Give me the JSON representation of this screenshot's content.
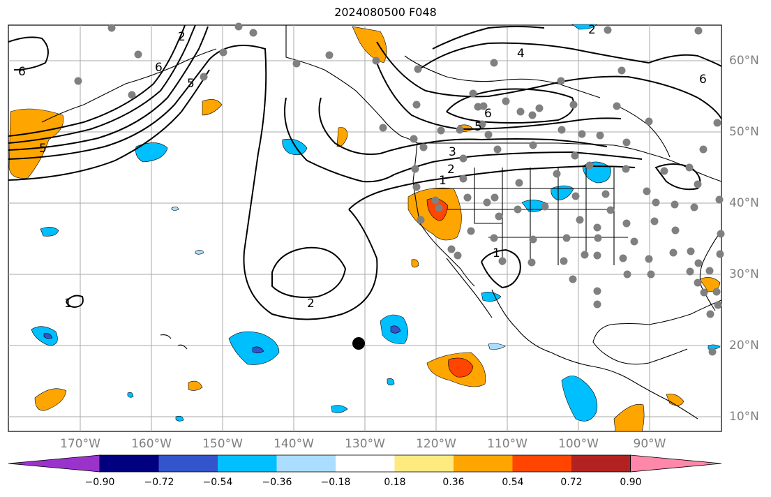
{
  "title": "2024080500 F048",
  "lon_labels": [
    "170°W",
    "160°W",
    "150°W",
    "140°W",
    "130°W",
    "120°W",
    "110°W",
    "100°W",
    "90°W"
  ],
  "lat_labels": [
    "60°N",
    "50°N",
    "40°N",
    "30°N",
    "20°N",
    "10°N"
  ],
  "contour_labels": [
    "6",
    "2",
    "5",
    "5",
    "6",
    "2",
    "4",
    "6",
    "6",
    "5",
    "3",
    "2",
    "1",
    "1",
    "2",
    "1"
  ],
  "colorbar": {
    "ticks": [
      "−0.90",
      "−0.72",
      "−0.54",
      "−0.36",
      "−0.18",
      "0.18",
      "0.36",
      "0.54",
      "0.72",
      "0.90"
    ],
    "colors": [
      "#9933cc",
      "#000080",
      "#3355cc",
      "#00bfff",
      "#aaddff",
      "#ffffff",
      "#ffea80",
      "#ffa500",
      "#ff4500",
      "#b22222",
      "#ff88aa"
    ]
  },
  "colors": {
    "grid": "#aaaaaa",
    "station_dot": "#808080",
    "contour": "#000000",
    "tick_label": "#7f7f7f"
  }
}
